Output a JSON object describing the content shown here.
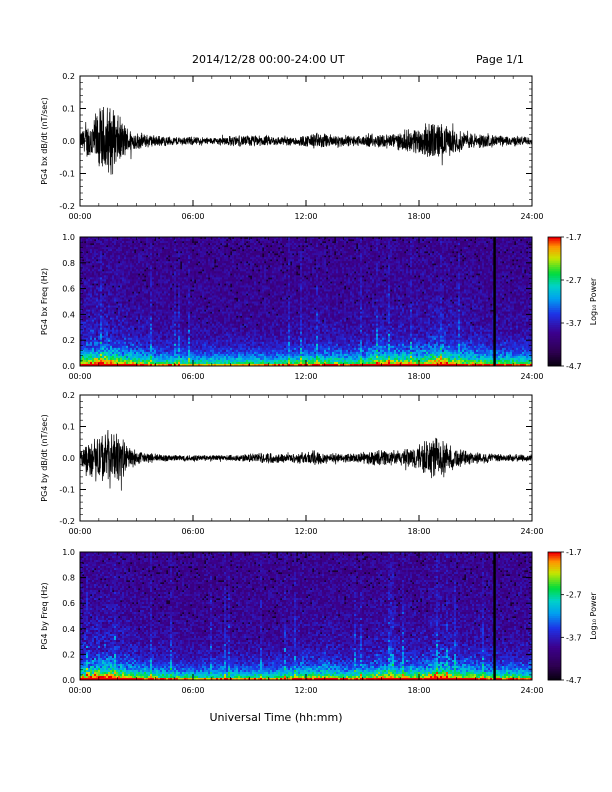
{
  "header": {
    "date_range": "2014/12/28  00:00-24:00 UT",
    "page": "Page 1/1"
  },
  "xlabel": "Universal Time (hh:mm)",
  "x_ticks": [
    "00:00",
    "06:00",
    "12:00",
    "18:00",
    "24:00"
  ],
  "colorbar": {
    "label": "Log₁₀ Power",
    "ticks": [
      "-1.7",
      "-2.7",
      "-3.7",
      "-4.7"
    ],
    "range": [
      -4.7,
      -1.7
    ]
  },
  "chart_data": [
    {
      "type": "line",
      "ylabel": "PG4 bx dB/dt (nT/sec)",
      "ylim": [
        -0.2,
        0.2
      ],
      "y_ticks": [
        "0.2",
        "0.1",
        "0.0",
        "-0.1",
        "-0.2"
      ],
      "xlim_hours": [
        0,
        24
      ],
      "envelope": [
        [
          0,
          0.03
        ],
        [
          0.5,
          0.07
        ],
        [
          1.0,
          0.11
        ],
        [
          1.5,
          0.13
        ],
        [
          2.0,
          0.09
        ],
        [
          2.5,
          0.05
        ],
        [
          3,
          0.03
        ],
        [
          4,
          0.02
        ],
        [
          5,
          0.015
        ],
        [
          6,
          0.015
        ],
        [
          7,
          0.012
        ],
        [
          8,
          0.018
        ],
        [
          9,
          0.02
        ],
        [
          10,
          0.018
        ],
        [
          11,
          0.015
        ],
        [
          12,
          0.02
        ],
        [
          12.5,
          0.03
        ],
        [
          13,
          0.025
        ],
        [
          14,
          0.02
        ],
        [
          15,
          0.018
        ],
        [
          16,
          0.025
        ],
        [
          17,
          0.03
        ],
        [
          18,
          0.05
        ],
        [
          18.8,
          0.07
        ],
        [
          19.5,
          0.05
        ],
        [
          20.5,
          0.03
        ],
        [
          22,
          0.02
        ],
        [
          24,
          0.015
        ]
      ]
    },
    {
      "type": "heatmap",
      "ylabel": "PG4 bx Freq (Hz)",
      "ylim": [
        0,
        1.0
      ],
      "y_ticks": [
        "1.0",
        "0.8",
        "0.6",
        "0.4",
        "0.2",
        "0.0"
      ],
      "xlim_hours": [
        0,
        24
      ],
      "color_range": [
        -4.7,
        -1.7
      ],
      "activity": [
        [
          0,
          0.6
        ],
        [
          1.0,
          0.9
        ],
        [
          1.5,
          0.85
        ],
        [
          2.5,
          0.6
        ],
        [
          4,
          0.4
        ],
        [
          6,
          0.3
        ],
        [
          8,
          0.35
        ],
        [
          10,
          0.3
        ],
        [
          12,
          0.45
        ],
        [
          13,
          0.5
        ],
        [
          14,
          0.4
        ],
        [
          15,
          0.45
        ],
        [
          16,
          0.7
        ],
        [
          17,
          0.65
        ],
        [
          18,
          0.6
        ],
        [
          19,
          0.85
        ],
        [
          20,
          0.6
        ],
        [
          22,
          0.45
        ],
        [
          24,
          0.4
        ]
      ]
    },
    {
      "type": "line",
      "ylabel": "PG4 by dB/dt (nT/sec)",
      "ylim": [
        -0.2,
        0.2
      ],
      "y_ticks": [
        "0.2",
        "0.1",
        "0.0",
        "-0.1",
        "-0.2"
      ],
      "xlim_hours": [
        0,
        24
      ],
      "envelope": [
        [
          0,
          0.03
        ],
        [
          0.5,
          0.06
        ],
        [
          1.0,
          0.09
        ],
        [
          1.5,
          0.1
        ],
        [
          2.0,
          0.09
        ],
        [
          2.5,
          0.05
        ],
        [
          3,
          0.025
        ],
        [
          4,
          0.015
        ],
        [
          5,
          0.012
        ],
        [
          6,
          0.012
        ],
        [
          7,
          0.01
        ],
        [
          8,
          0.012
        ],
        [
          9,
          0.015
        ],
        [
          10,
          0.02
        ],
        [
          11,
          0.015
        ],
        [
          12,
          0.022
        ],
        [
          12.5,
          0.03
        ],
        [
          13,
          0.02
        ],
        [
          14,
          0.015
        ],
        [
          15,
          0.02
        ],
        [
          16,
          0.03
        ],
        [
          17,
          0.025
        ],
        [
          18,
          0.05
        ],
        [
          18.8,
          0.08
        ],
        [
          19.5,
          0.05
        ],
        [
          20.5,
          0.025
        ],
        [
          22,
          0.015
        ],
        [
          24,
          0.012
        ]
      ]
    },
    {
      "type": "heatmap",
      "ylabel": "PG4 by Freq (Hz)",
      "ylim": [
        0,
        1.0
      ],
      "y_ticks": [
        "1.0",
        "0.8",
        "0.6",
        "0.4",
        "0.2",
        "0.0"
      ],
      "xlim_hours": [
        0,
        24
      ],
      "color_range": [
        -4.7,
        -1.7
      ],
      "activity": [
        [
          0,
          0.65
        ],
        [
          1.0,
          0.9
        ],
        [
          1.5,
          0.85
        ],
        [
          2.5,
          0.6
        ],
        [
          4,
          0.4
        ],
        [
          6,
          0.3
        ],
        [
          8,
          0.35
        ],
        [
          10,
          0.3
        ],
        [
          12,
          0.5
        ],
        [
          13,
          0.55
        ],
        [
          14,
          0.4
        ],
        [
          15,
          0.45
        ],
        [
          16,
          0.65
        ],
        [
          17,
          0.6
        ],
        [
          18,
          0.55
        ],
        [
          19,
          0.85
        ],
        [
          20,
          0.6
        ],
        [
          22,
          0.45
        ],
        [
          24,
          0.4
        ]
      ]
    }
  ]
}
